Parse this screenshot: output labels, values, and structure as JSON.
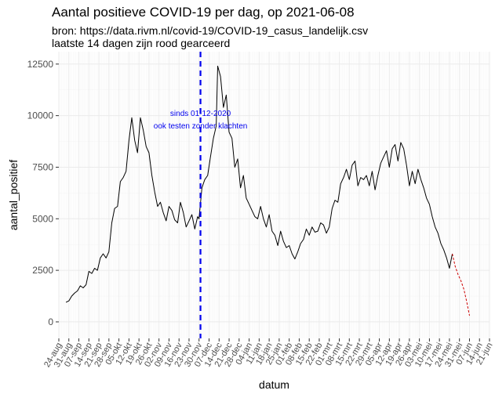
{
  "chart_data": {
    "type": "line",
    "title": "Aantal positieve COVID-19 per dag, op 2021-06-08",
    "subtitle_lines": [
      "bron: https://data.rivm.nl/covid-19/COVID-19_casus_landelijk.csv",
      "laatste 14 dagen zijn rood gearceerd"
    ],
    "xlabel": "datum",
    "ylabel": "aantal_positief",
    "grid": true,
    "panel_background": "#ffffff",
    "line_color": "#000000",
    "recent_color": "#cc0000",
    "vline_color": "#0000ee",
    "x_start": "2020-08-24",
    "x_end": "2021-06-21",
    "ylim": [
      -800,
      13100
    ],
    "yticks": [
      0,
      2500,
      5000,
      7500,
      10000,
      12500
    ],
    "ytick_labels": [
      "0",
      "2500",
      "5000",
      "7500",
      "10000",
      "12500"
    ],
    "xtick_labels": [
      "24-aug",
      "31-aug",
      "07-sep",
      "14-sep",
      "21-sep",
      "28-sep",
      "05-okt",
      "12-okt",
      "19-okt",
      "26-okt",
      "02-nov",
      "09-nov",
      "16-nov",
      "23-nov",
      "30-nov",
      "07-dec",
      "14-dec",
      "21-dec",
      "28-dec",
      "04-jan",
      "11-jan",
      "18-jan",
      "25-jan",
      "01-feb",
      "08-feb",
      "15-feb",
      "22-feb",
      "01-mrt",
      "08-mrt",
      "15-mrt",
      "22-mrt",
      "29-mrt",
      "05-apr",
      "12-apr",
      "19-apr",
      "26-apr",
      "03-mei",
      "10-mei",
      "17-mei",
      "24-mei",
      "31-mei",
      "07-jun",
      "14-jun",
      "21-jun"
    ],
    "vline": {
      "date": "2020-12-01",
      "label_lines": [
        "sinds 01-12-2020",
        "ook testen zonder klachten"
      ]
    },
    "series": [
      {
        "name": "aantal_positief",
        "style": "solid",
        "points": [
          [
            "2020-08-29",
            950
          ],
          [
            "2020-08-31",
            1020
          ],
          [
            "2020-09-02",
            1250
          ],
          [
            "2020-09-04",
            1400
          ],
          [
            "2020-09-06",
            1500
          ],
          [
            "2020-09-08",
            1750
          ],
          [
            "2020-09-10",
            1650
          ],
          [
            "2020-09-12",
            1800
          ],
          [
            "2020-09-14",
            2450
          ],
          [
            "2020-09-16",
            2350
          ],
          [
            "2020-09-18",
            2600
          ],
          [
            "2020-09-20",
            2500
          ],
          [
            "2020-09-22",
            3100
          ],
          [
            "2020-09-24",
            3300
          ],
          [
            "2020-09-26",
            3100
          ],
          [
            "2020-09-28",
            3400
          ],
          [
            "2020-09-30",
            4800
          ],
          [
            "2020-10-02",
            5500
          ],
          [
            "2020-10-04",
            5600
          ],
          [
            "2020-10-06",
            6800
          ],
          [
            "2020-10-08",
            7000
          ],
          [
            "2020-10-10",
            7300
          ],
          [
            "2020-10-12",
            8800
          ],
          [
            "2020-10-14",
            9900
          ],
          [
            "2020-10-16",
            8800
          ],
          [
            "2020-10-18",
            8200
          ],
          [
            "2020-10-20",
            9900
          ],
          [
            "2020-10-22",
            9300
          ],
          [
            "2020-10-24",
            8500
          ],
          [
            "2020-10-26",
            8200
          ],
          [
            "2020-10-28",
            7100
          ],
          [
            "2020-10-30",
            6300
          ],
          [
            "2020-11-01",
            5600
          ],
          [
            "2020-11-03",
            5800
          ],
          [
            "2020-11-05",
            5300
          ],
          [
            "2020-11-07",
            4900
          ],
          [
            "2020-11-09",
            5600
          ],
          [
            "2020-11-11",
            5400
          ],
          [
            "2020-11-13",
            4950
          ],
          [
            "2020-11-15",
            4800
          ],
          [
            "2020-11-17",
            5800
          ],
          [
            "2020-11-19",
            5300
          ],
          [
            "2020-11-21",
            4600
          ],
          [
            "2020-11-23",
            4900
          ],
          [
            "2020-11-25",
            5200
          ],
          [
            "2020-11-27",
            4500
          ],
          [
            "2020-11-29",
            5100
          ],
          [
            "2020-11-30",
            5000
          ],
          [
            "2020-12-02",
            6500
          ],
          [
            "2020-12-04",
            6900
          ],
          [
            "2020-12-06",
            7100
          ],
          [
            "2020-12-08",
            8000
          ],
          [
            "2020-12-10",
            8900
          ],
          [
            "2020-12-12",
            9500
          ],
          [
            "2020-12-13",
            12400
          ],
          [
            "2020-12-15",
            11900
          ],
          [
            "2020-12-17",
            10400
          ],
          [
            "2020-12-19",
            11000
          ],
          [
            "2020-12-21",
            9200
          ],
          [
            "2020-12-23",
            8900
          ],
          [
            "2020-12-25",
            7500
          ],
          [
            "2020-12-27",
            7900
          ],
          [
            "2020-12-29",
            6500
          ],
          [
            "2020-12-31",
            7100
          ],
          [
            "2021-01-02",
            6000
          ],
          [
            "2021-01-04",
            5700
          ],
          [
            "2021-01-06",
            5400
          ],
          [
            "2021-01-08",
            5100
          ],
          [
            "2021-01-10",
            5000
          ],
          [
            "2021-01-12",
            5600
          ],
          [
            "2021-01-14",
            5000
          ],
          [
            "2021-01-16",
            4600
          ],
          [
            "2021-01-18",
            5200
          ],
          [
            "2021-01-20",
            4400
          ],
          [
            "2021-01-22",
            4200
          ],
          [
            "2021-01-24",
            3700
          ],
          [
            "2021-01-26",
            4400
          ],
          [
            "2021-01-28",
            3900
          ],
          [
            "2021-01-30",
            3600
          ],
          [
            "2021-02-01",
            3700
          ],
          [
            "2021-02-03",
            3300
          ],
          [
            "2021-02-05",
            3050
          ],
          [
            "2021-02-07",
            3400
          ],
          [
            "2021-02-09",
            3800
          ],
          [
            "2021-02-11",
            4000
          ],
          [
            "2021-02-13",
            4500
          ],
          [
            "2021-02-15",
            4200
          ],
          [
            "2021-02-17",
            4600
          ],
          [
            "2021-02-19",
            4350
          ],
          [
            "2021-02-21",
            4400
          ],
          [
            "2021-02-23",
            4800
          ],
          [
            "2021-02-25",
            4700
          ],
          [
            "2021-02-27",
            4300
          ],
          [
            "2021-03-01",
            4600
          ],
          [
            "2021-03-03",
            5500
          ],
          [
            "2021-03-05",
            5900
          ],
          [
            "2021-03-07",
            5800
          ],
          [
            "2021-03-09",
            6700
          ],
          [
            "2021-03-11",
            7000
          ],
          [
            "2021-03-13",
            7400
          ],
          [
            "2021-03-15",
            6900
          ],
          [
            "2021-03-17",
            7600
          ],
          [
            "2021-03-19",
            7800
          ],
          [
            "2021-03-21",
            6600
          ],
          [
            "2021-03-23",
            7000
          ],
          [
            "2021-03-25",
            6900
          ],
          [
            "2021-03-27",
            7100
          ],
          [
            "2021-03-29",
            6600
          ],
          [
            "2021-03-31",
            7300
          ],
          [
            "2021-04-02",
            6400
          ],
          [
            "2021-04-04",
            7100
          ],
          [
            "2021-04-06",
            7700
          ],
          [
            "2021-04-08",
            8000
          ],
          [
            "2021-04-10",
            8300
          ],
          [
            "2021-04-12",
            7500
          ],
          [
            "2021-04-14",
            8400
          ],
          [
            "2021-04-16",
            8600
          ],
          [
            "2021-04-18",
            7800
          ],
          [
            "2021-04-20",
            8700
          ],
          [
            "2021-04-22",
            8400
          ],
          [
            "2021-04-24",
            7600
          ],
          [
            "2021-04-26",
            6600
          ],
          [
            "2021-04-28",
            7300
          ],
          [
            "2021-04-30",
            6700
          ],
          [
            "2021-05-02",
            7400
          ],
          [
            "2021-05-04",
            6900
          ],
          [
            "2021-05-06",
            6500
          ],
          [
            "2021-05-08",
            6000
          ],
          [
            "2021-05-10",
            5700
          ],
          [
            "2021-05-12",
            5100
          ],
          [
            "2021-05-14",
            4600
          ],
          [
            "2021-05-16",
            4300
          ],
          [
            "2021-05-18",
            3800
          ],
          [
            "2021-05-20",
            3500
          ],
          [
            "2021-05-22",
            3100
          ],
          [
            "2021-05-24",
            2600
          ],
          [
            "2021-05-26",
            3300
          ]
        ]
      },
      {
        "name": "laatste 14 dagen",
        "style": "dashed",
        "points": [
          [
            "2021-05-26",
            3300
          ],
          [
            "2021-05-28",
            2700
          ],
          [
            "2021-05-30",
            2300
          ],
          [
            "2021-06-01",
            2000
          ],
          [
            "2021-06-03",
            1600
          ],
          [
            "2021-06-05",
            1000
          ],
          [
            "2021-06-07",
            300
          ]
        ]
      }
    ]
  }
}
